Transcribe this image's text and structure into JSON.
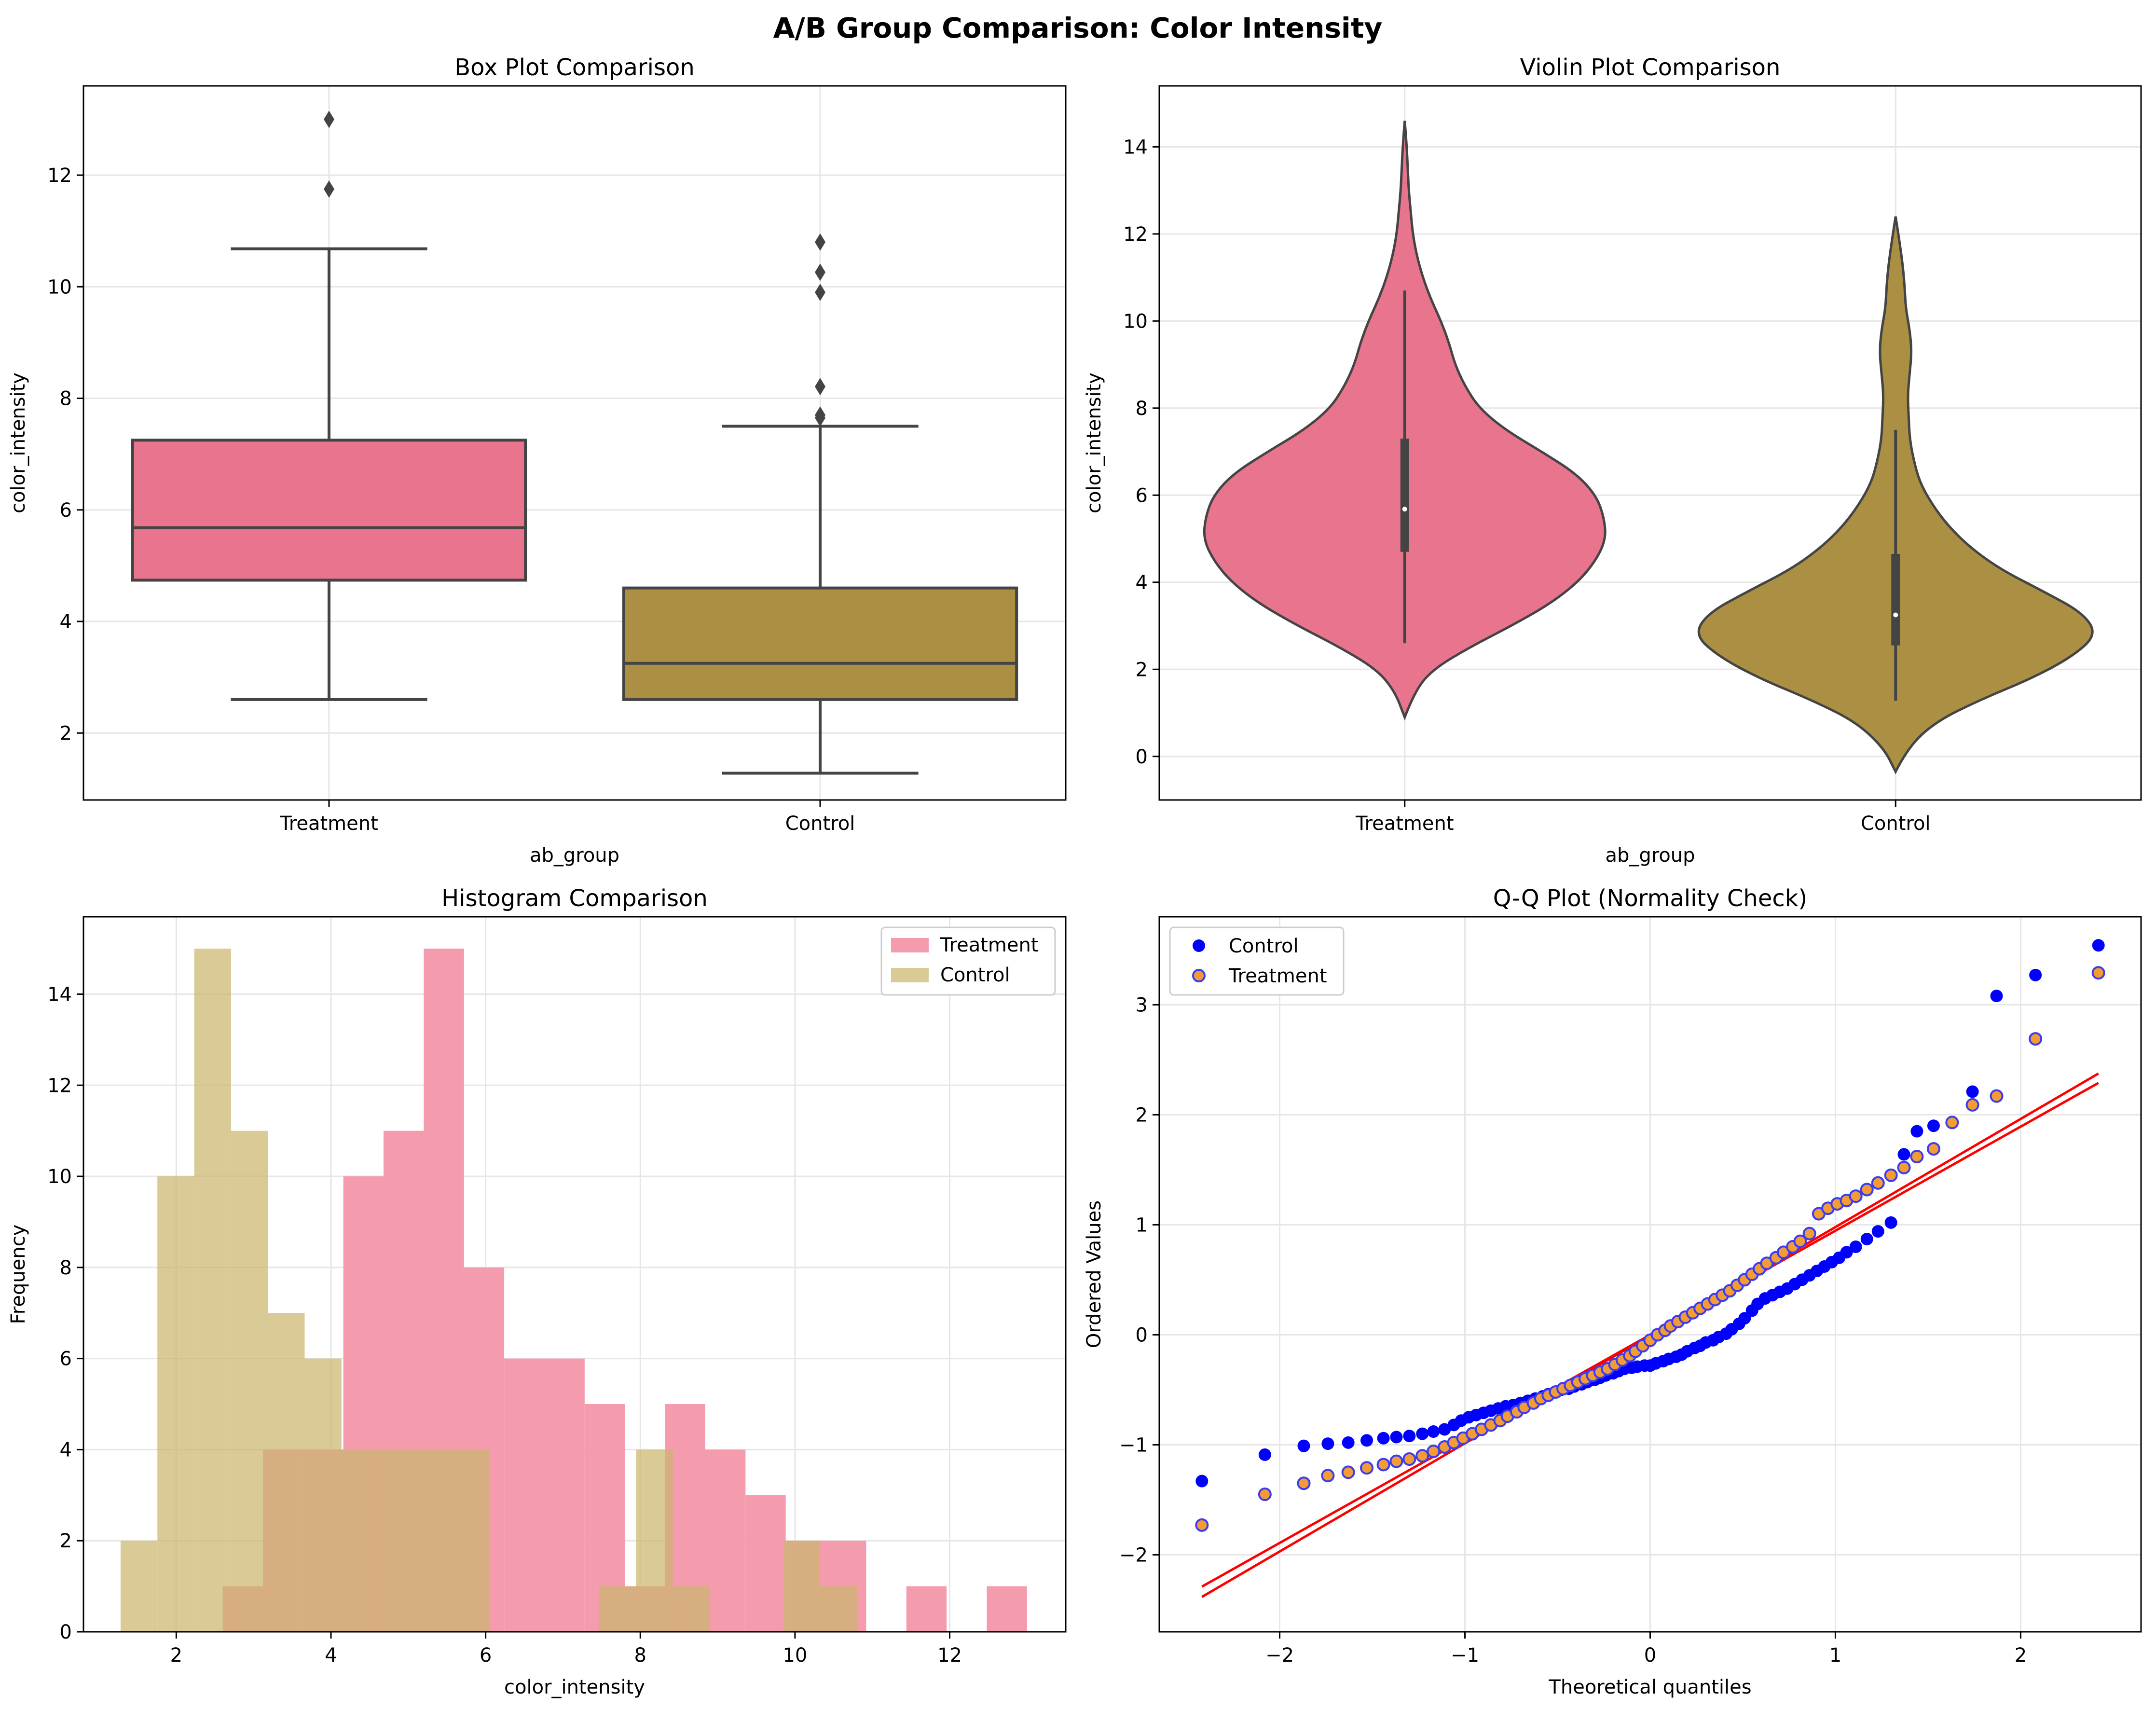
{
  "figure": {
    "title": "A/B Group Comparison: Color Intensity",
    "colors": {
      "treatment": "#e8758d",
      "control": "#ab8f43",
      "treatment_hist": "#f59bae",
      "control_hist": "#cbb66d",
      "overlap": "#cf9756",
      "qq_control": "#0000ff",
      "qq_treatment_fill": "#f39c36",
      "qq_treatment_edge": "#3c3cf0",
      "qq_line": "#ff0000",
      "box_edge": "#444444"
    }
  },
  "chart_data": [
    {
      "type": "box",
      "title": "Box Plot Comparison",
      "xlabel": "ab_group",
      "ylabel": "color_intensity",
      "categories": [
        "Treatment",
        "Control"
      ],
      "ylim": [
        0.8,
        13.6
      ],
      "yticks": [
        2,
        4,
        6,
        8,
        10,
        12
      ],
      "grid": true,
      "groups": [
        {
          "name": "Treatment",
          "whisker_low": 2.6,
          "q1": 4.74,
          "median": 5.68,
          "q3": 7.25,
          "whisker_high": 10.68,
          "outliers": [
            13.0,
            11.75
          ]
        },
        {
          "name": "Control",
          "whisker_low": 1.28,
          "q1": 2.6,
          "median": 3.25,
          "q3": 4.6,
          "whisker_high": 7.5,
          "outliers": [
            10.8,
            10.26,
            9.9,
            8.21,
            7.7,
            7.65
          ]
        }
      ]
    },
    {
      "type": "violin",
      "title": "Violin Plot Comparison",
      "xlabel": "ab_group",
      "ylabel": "color_intensity",
      "categories": [
        "Treatment",
        "Control"
      ],
      "ylim": [
        -1.0,
        15.4
      ],
      "yticks": [
        0,
        2,
        4,
        6,
        8,
        10,
        12,
        14
      ],
      "grid": true,
      "groups": [
        {
          "name": "Treatment",
          "y_min": 0.9,
          "y_max": 14.6,
          "median": 5.68,
          "q1": 4.7,
          "q3": 7.3,
          "whisker_low": 2.6,
          "whisker_high": 10.7,
          "density_y": [
            0.9,
            1.5,
            2.0,
            2.5,
            3.0,
            3.5,
            4.0,
            4.5,
            5.0,
            5.5,
            6.0,
            6.5,
            7.0,
            7.5,
            8.0,
            8.5,
            9.0,
            9.5,
            10.0,
            10.5,
            11.0,
            11.5,
            12.0,
            12.5,
            13.0,
            13.5,
            14.0,
            14.6
          ],
          "half_width": [
            0.0,
            0.05,
            0.14,
            0.32,
            0.53,
            0.72,
            0.86,
            0.95,
            1.0,
            0.99,
            0.95,
            0.85,
            0.68,
            0.5,
            0.37,
            0.3,
            0.25,
            0.22,
            0.18,
            0.13,
            0.09,
            0.06,
            0.04,
            0.03,
            0.02,
            0.015,
            0.01,
            0.0
          ]
        },
        {
          "name": "Control",
          "y_min": -0.35,
          "y_max": 12.4,
          "median": 3.25,
          "q1": 2.55,
          "q3": 4.65,
          "whisker_low": 1.28,
          "whisker_high": 7.5,
          "density_y": [
            -0.35,
            0.2,
            0.8,
            1.3,
            1.8,
            2.3,
            2.8,
            3.3,
            3.8,
            4.3,
            4.8,
            5.3,
            5.8,
            6.3,
            6.8,
            7.3,
            7.8,
            8.3,
            8.8,
            9.3,
            9.8,
            10.3,
            10.8,
            11.3,
            11.8,
            12.4
          ],
          "half_width": [
            0.0,
            0.06,
            0.2,
            0.42,
            0.68,
            0.88,
            1.0,
            0.93,
            0.73,
            0.52,
            0.37,
            0.26,
            0.18,
            0.12,
            0.09,
            0.07,
            0.065,
            0.06,
            0.07,
            0.08,
            0.07,
            0.05,
            0.045,
            0.035,
            0.02,
            0.0
          ]
        }
      ]
    },
    {
      "type": "histogram",
      "title": "Histogram Comparison",
      "xlabel": "color_intensity",
      "ylabel": "Frequency",
      "xlim": [
        0.8,
        13.5
      ],
      "ylim": [
        0,
        15.7
      ],
      "xticks": [
        2,
        4,
        6,
        8,
        10,
        12
      ],
      "yticks": [
        0,
        2,
        4,
        6,
        8,
        10,
        12,
        14
      ],
      "grid": true,
      "legend": "top-right",
      "series": [
        {
          "name": "Treatment",
          "bin_start": 2.6,
          "bin_width": 0.52,
          "counts": [
            1,
            4,
            4,
            10,
            11,
            15,
            8,
            6,
            6,
            5,
            1,
            5,
            4,
            3,
            2,
            2,
            0,
            1,
            0,
            1
          ]
        },
        {
          "name": "Control",
          "bin_start": 1.28,
          "bin_width": 0.476,
          "counts": [
            2,
            10,
            15,
            11,
            7,
            6,
            4,
            4,
            4,
            4,
            0,
            0,
            0,
            1,
            4,
            1,
            0,
            0,
            2,
            1
          ]
        }
      ]
    },
    {
      "type": "scatter",
      "title": "Q-Q Plot (Normality Check)",
      "xlabel": "Theoretical quantiles",
      "ylabel": "Ordered Values",
      "xlim": [
        -2.65,
        2.65
      ],
      "ylim": [
        -2.7,
        3.8
      ],
      "xticks": [
        -2,
        -1,
        0,
        1,
        2
      ],
      "yticks": [
        -2,
        -1,
        0,
        1,
        2,
        3
      ],
      "xtick_labels": [
        "−2",
        "−1",
        "0",
        "1",
        "2"
      ],
      "ytick_labels": [
        "−2",
        "−1",
        "0",
        "1",
        "2",
        "3"
      ],
      "grid": true,
      "legend": "top-left",
      "series": [
        {
          "name": "Control",
          "fit": [
            0.983,
            -0.004
          ],
          "x": [
            -2.42,
            -2.08,
            -1.87,
            -1.74,
            -1.63,
            -1.53,
            -1.44,
            -1.37,
            -1.3,
            -1.23,
            -1.17,
            -1.11,
            -1.06,
            -1.02,
            -0.98,
            -0.94,
            -0.9,
            -0.86,
            -0.82,
            -0.78,
            -0.74,
            -0.7,
            -0.66,
            -0.62,
            -0.58,
            -0.55,
            -0.51,
            -0.48,
            -0.44,
            -0.41,
            -0.37,
            -0.34,
            -0.3,
            -0.27,
            -0.24,
            -0.2,
            -0.17,
            -0.14,
            -0.1,
            -0.07,
            -0.03,
            0.0,
            0.03,
            0.07,
            0.1,
            0.14,
            0.17,
            0.2,
            0.24,
            0.27,
            0.3,
            0.34,
            0.37,
            0.41,
            0.44,
            0.48,
            0.51,
            0.55,
            0.58,
            0.62,
            0.66,
            0.7,
            0.74,
            0.78,
            0.82,
            0.86,
            0.9,
            0.94,
            0.98,
            1.02,
            1.06,
            1.11,
            1.17,
            1.23,
            1.3,
            1.37,
            1.44,
            1.53,
            1.63,
            1.74,
            1.87,
            2.08,
            2.42
          ],
          "y": [
            -1.33,
            -1.09,
            -1.01,
            -0.99,
            -0.98,
            -0.96,
            -0.94,
            -0.93,
            -0.92,
            -0.9,
            -0.88,
            -0.86,
            -0.82,
            -0.78,
            -0.75,
            -0.73,
            -0.71,
            -0.69,
            -0.67,
            -0.65,
            -0.64,
            -0.62,
            -0.6,
            -0.58,
            -0.56,
            -0.54,
            -0.52,
            -0.5,
            -0.49,
            -0.47,
            -0.45,
            -0.43,
            -0.41,
            -0.39,
            -0.37,
            -0.35,
            -0.33,
            -0.31,
            -0.3,
            -0.29,
            -0.28,
            -0.28,
            -0.26,
            -0.24,
            -0.22,
            -0.2,
            -0.18,
            -0.15,
            -0.12,
            -0.1,
            -0.07,
            -0.05,
            -0.02,
            0.01,
            0.05,
            0.1,
            0.15,
            0.22,
            0.28,
            0.33,
            0.36,
            0.39,
            0.42,
            0.46,
            0.5,
            0.54,
            0.58,
            0.62,
            0.66,
            0.7,
            0.75,
            0.8,
            0.87,
            0.94,
            1.02,
            1.64,
            1.85,
            1.9,
            1.93,
            2.21,
            3.08,
            3.27,
            3.54
          ]
        },
        {
          "name": "Treatment",
          "fit": [
            0.946,
            0.0
          ],
          "x": [
            -2.42,
            -2.08,
            -1.87,
            -1.74,
            -1.63,
            -1.53,
            -1.44,
            -1.37,
            -1.3,
            -1.23,
            -1.17,
            -1.11,
            -1.06,
            -1.01,
            -0.96,
            -0.91,
            -0.86,
            -0.81,
            -0.77,
            -0.72,
            -0.68,
            -0.63,
            -0.59,
            -0.55,
            -0.51,
            -0.47,
            -0.43,
            -0.39,
            -0.35,
            -0.31,
            -0.27,
            -0.23,
            -0.19,
            -0.15,
            -0.11,
            -0.08,
            -0.04,
            0.0,
            0.04,
            0.08,
            0.11,
            0.15,
            0.19,
            0.23,
            0.27,
            0.31,
            0.35,
            0.39,
            0.43,
            0.47,
            0.51,
            0.55,
            0.59,
            0.63,
            0.68,
            0.72,
            0.77,
            0.81,
            0.86,
            0.91,
            0.96,
            1.01,
            1.06,
            1.11,
            1.17,
            1.23,
            1.3,
            1.37,
            1.44,
            1.53,
            1.63,
            1.74,
            1.87,
            2.08,
            2.42
          ],
          "y": [
            -1.73,
            -1.45,
            -1.35,
            -1.28,
            -1.25,
            -1.21,
            -1.18,
            -1.15,
            -1.13,
            -1.1,
            -1.06,
            -1.02,
            -0.98,
            -0.94,
            -0.9,
            -0.86,
            -0.82,
            -0.78,
            -0.74,
            -0.7,
            -0.66,
            -0.62,
            -0.58,
            -0.55,
            -0.52,
            -0.49,
            -0.46,
            -0.43,
            -0.4,
            -0.37,
            -0.34,
            -0.31,
            -0.27,
            -0.23,
            -0.19,
            -0.15,
            -0.1,
            -0.05,
            0.0,
            0.04,
            0.08,
            0.12,
            0.16,
            0.2,
            0.24,
            0.28,
            0.32,
            0.36,
            0.4,
            0.45,
            0.5,
            0.55,
            0.6,
            0.65,
            0.7,
            0.75,
            0.8,
            0.85,
            0.92,
            1.1,
            1.15,
            1.19,
            1.22,
            1.26,
            1.32,
            1.38,
            1.45,
            1.52,
            1.62,
            1.69,
            1.93,
            2.09,
            2.17,
            2.69,
            3.29
          ]
        }
      ]
    }
  ]
}
